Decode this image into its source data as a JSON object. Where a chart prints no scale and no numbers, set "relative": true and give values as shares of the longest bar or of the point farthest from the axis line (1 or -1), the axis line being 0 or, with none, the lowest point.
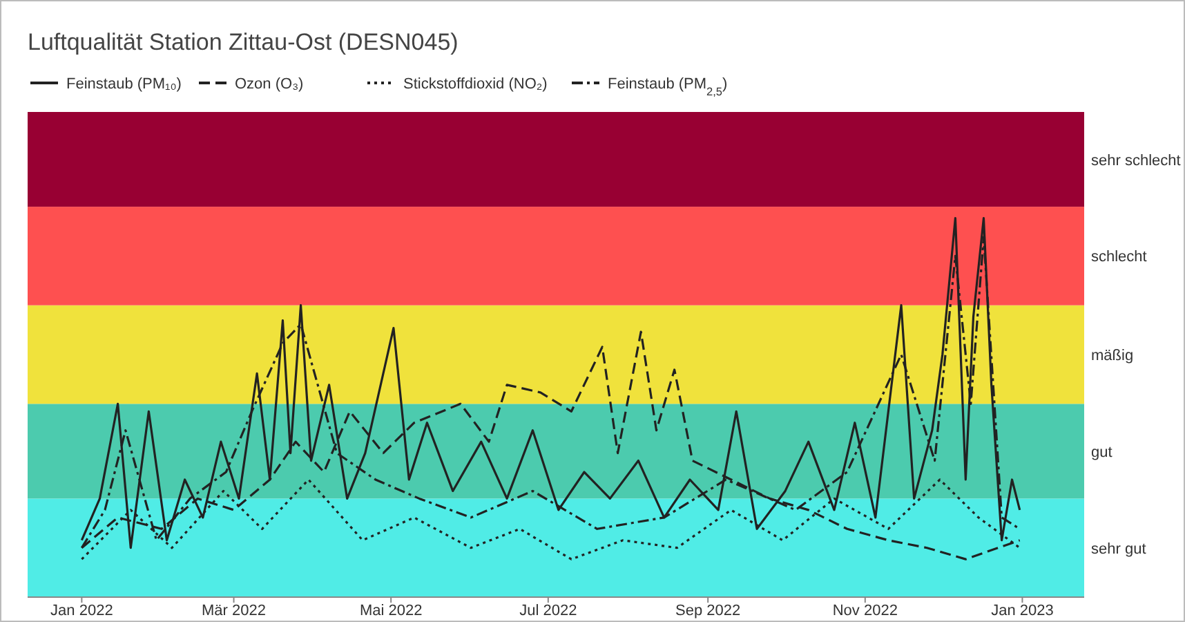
{
  "chart_data": {
    "type": "line",
    "title": "Luftqualität Station Zittau-Ost (DESN045)",
    "xlim": [
      "2021-12-11",
      "2023-01-25"
    ],
    "relative": true,
    "legend": "top left",
    "xticks": [
      {
        "value": "2022-01-01",
        "label": "Jan 2022"
      },
      {
        "value": "2022-03-01",
        "label": "Mär 2022"
      },
      {
        "value": "2022-05-01",
        "label": "Mai 2022"
      },
      {
        "value": "2022-07-01",
        "label": "Jul 2022"
      },
      {
        "value": "2022-09-01",
        "label": "Sep 2022"
      },
      {
        "value": "2022-11-01",
        "label": "Nov 2022"
      },
      {
        "value": "2023-01-01",
        "label": "Jan 2023"
      }
    ],
    "bands": [
      {
        "axis": "y",
        "from": 0,
        "to": 0.26,
        "label": "sehr gut",
        "color": "#50ece6"
      },
      {
        "axis": "y",
        "from": 0.26,
        "to": 0.51,
        "label": "gut",
        "color": "#4ccbae"
      },
      {
        "axis": "y",
        "from": 0.51,
        "to": 0.77,
        "label": "mäßig",
        "color": "#f0e23c"
      },
      {
        "axis": "y",
        "from": 0.77,
        "to": 1.03,
        "label": "schlecht",
        "color": "#fe5050"
      },
      {
        "axis": "y",
        "from": 1.03,
        "to": 1.28,
        "label": "sehr schlecht",
        "color": "#980033"
      }
    ],
    "series": [
      {
        "name": "Feinstaub (PM₁₀)",
        "color": "#222222",
        "line_style": "solid",
        "x": [
          "2022-01-01",
          "2022-01-08",
          "2022-01-15",
          "2022-01-20",
          "2022-01-27",
          "2022-02-03",
          "2022-02-10",
          "2022-02-17",
          "2022-02-24",
          "2022-03-03",
          "2022-03-10",
          "2022-03-15",
          "2022-03-20",
          "2022-03-23",
          "2022-03-27",
          "2022-03-31",
          "2022-04-07",
          "2022-04-14",
          "2022-04-21",
          "2022-05-02",
          "2022-05-08",
          "2022-05-15",
          "2022-05-25",
          "2022-06-05",
          "2022-06-15",
          "2022-06-25",
          "2022-07-05",
          "2022-07-15",
          "2022-07-25",
          "2022-08-05",
          "2022-08-15",
          "2022-08-25",
          "2022-09-05",
          "2022-09-12",
          "2022-09-20",
          "2022-10-01",
          "2022-10-10",
          "2022-10-20",
          "2022-10-28",
          "2022-11-05",
          "2022-11-15",
          "2022-11-20",
          "2022-11-27",
          "2022-12-01",
          "2022-12-06",
          "2022-12-10",
          "2022-12-13",
          "2022-12-17",
          "2022-12-20",
          "2022-12-24",
          "2022-12-28",
          "2022-12-31"
        ],
        "values": [
          0.15,
          0.26,
          0.51,
          0.13,
          0.49,
          0.15,
          0.31,
          0.21,
          0.41,
          0.26,
          0.59,
          0.31,
          0.73,
          0.38,
          0.77,
          0.36,
          0.56,
          0.26,
          0.38,
          0.71,
          0.31,
          0.46,
          0.28,
          0.41,
          0.26,
          0.44,
          0.23,
          0.33,
          0.26,
          0.36,
          0.21,
          0.31,
          0.23,
          0.49,
          0.18,
          0.28,
          0.41,
          0.23,
          0.46,
          0.21,
          0.77,
          0.26,
          0.44,
          0.64,
          1,
          0.31,
          0.74,
          1,
          0.56,
          0.15,
          0.31,
          0.23
        ]
      },
      {
        "name": "Ozon (O₃)",
        "color": "#222222",
        "line_style": "dashed",
        "x": [
          "2022-01-01",
          "2022-01-15",
          "2022-02-01",
          "2022-02-15",
          "2022-03-01",
          "2022-03-15",
          "2022-03-25",
          "2022-04-05",
          "2022-04-15",
          "2022-04-28",
          "2022-05-10",
          "2022-05-28",
          "2022-06-08",
          "2022-06-15",
          "2022-06-28",
          "2022-07-10",
          "2022-07-22",
          "2022-07-28",
          "2022-08-06",
          "2022-08-12",
          "2022-08-19",
          "2022-08-26",
          "2022-09-10",
          "2022-09-25",
          "2022-10-10",
          "2022-10-25",
          "2022-11-10",
          "2022-11-25",
          "2022-12-10",
          "2022-12-31"
        ],
        "values": [
          0.13,
          0.21,
          0.18,
          0.26,
          0.23,
          0.31,
          0.41,
          0.33,
          0.49,
          0.38,
          0.46,
          0.51,
          0.41,
          0.56,
          0.54,
          0.49,
          0.66,
          0.38,
          0.7,
          0.44,
          0.6,
          0.36,
          0.31,
          0.26,
          0.23,
          0.18,
          0.15,
          0.13,
          0.1,
          0.15
        ]
      },
      {
        "name": "Stickstoffdioxid (NO₂)",
        "color": "#222222",
        "line_style": "dotted",
        "x": [
          "2022-01-01",
          "2022-01-20",
          "2022-02-05",
          "2022-02-25",
          "2022-03-12",
          "2022-03-30",
          "2022-04-20",
          "2022-05-10",
          "2022-06-01",
          "2022-06-20",
          "2022-07-10",
          "2022-07-30",
          "2022-08-20",
          "2022-09-10",
          "2022-09-30",
          "2022-10-20",
          "2022-11-10",
          "2022-11-30",
          "2022-12-15",
          "2022-12-31"
        ],
        "values": [
          0.1,
          0.23,
          0.13,
          0.28,
          0.18,
          0.31,
          0.15,
          0.21,
          0.13,
          0.18,
          0.1,
          0.15,
          0.13,
          0.23,
          0.15,
          0.26,
          0.18,
          0.31,
          0.21,
          0.13
        ]
      },
      {
        "name": "Feinstaub (PM$_{2,5}$)",
        "color": "#222222",
        "line_style": "dashdot",
        "x": [
          "2022-01-01",
          "2022-01-10",
          "2022-01-18",
          "2022-01-30",
          "2022-02-12",
          "2022-02-26",
          "2022-03-08",
          "2022-03-20",
          "2022-03-27",
          "2022-04-10",
          "2022-04-25",
          "2022-05-12",
          "2022-06-01",
          "2022-06-25",
          "2022-07-20",
          "2022-08-15",
          "2022-09-08",
          "2022-10-05",
          "2022-10-25",
          "2022-11-15",
          "2022-11-28",
          "2022-12-06",
          "2022-12-12",
          "2022-12-17",
          "2022-12-24",
          "2022-12-31"
        ],
        "values": [
          0.13,
          0.23,
          0.44,
          0.15,
          0.26,
          0.33,
          0.49,
          0.67,
          0.72,
          0.38,
          0.31,
          0.26,
          0.21,
          0.28,
          0.18,
          0.21,
          0.31,
          0.23,
          0.33,
          0.64,
          0.36,
          0.9,
          0.51,
          0.95,
          0.21,
          0.18
        ]
      }
    ]
  }
}
